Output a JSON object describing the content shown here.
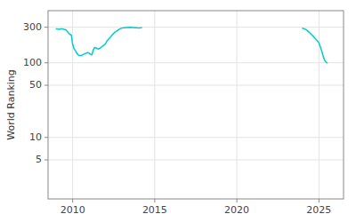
{
  "chart_data": {
    "type": "line",
    "ylabel": "World Ranking",
    "log": "y",
    "grid": true,
    "xlim": [
      2008.5,
      2026.5
    ],
    "ylim": [
      1.5,
      500
    ],
    "xticks": [
      2010,
      2015,
      2020,
      2025
    ],
    "yticks": [
      5,
      10,
      50,
      100,
      300
    ],
    "series": [
      {
        "color": "#00cccc",
        "x": [
          2009.0,
          2009.08,
          2009.17,
          2009.25,
          2009.33,
          2009.42,
          2009.5,
          2009.58,
          2009.67,
          2009.75,
          2009.83,
          2009.92,
          2010.0,
          2010.08,
          2010.17,
          2010.25,
          2010.33,
          2010.42,
          2010.5,
          2010.58,
          2010.67,
          2010.75,
          2010.83,
          2010.92,
          2011.0,
          2011.08,
          2011.17,
          2011.25,
          2011.33,
          2011.42,
          2011.5,
          2011.58,
          2011.67,
          2011.75,
          2011.83,
          2011.92,
          2012.0,
          2012.08,
          2012.17,
          2012.25,
          2012.33,
          2012.42,
          2012.5,
          2012.58,
          2012.67,
          2012.75,
          2012.83,
          2013.0,
          2013.08,
          2013.17,
          2013.25,
          2013.33,
          2013.5,
          2013.67,
          2013.83,
          2014.0,
          2014.1,
          2014.2
        ],
        "values": [
          285,
          283,
          281,
          284,
          286,
          283,
          280,
          277,
          265,
          250,
          240,
          235,
          175,
          155,
          145,
          135,
          128,
          125,
          125,
          127,
          130,
          133,
          135,
          137,
          135,
          130,
          128,
          148,
          160,
          158,
          155,
          153,
          158,
          162,
          168,
          173,
          180,
          195,
          205,
          215,
          225,
          238,
          248,
          258,
          265,
          272,
          282,
          292,
          294,
          296,
          297,
          298,
          299,
          298,
          296,
          293,
          294,
          296
        ]
      },
      {
        "color": "#00cccc",
        "x": [
          2024.0,
          2024.08,
          2024.17,
          2024.25,
          2024.33,
          2024.42,
          2024.5,
          2024.58,
          2024.67,
          2024.75,
          2024.83,
          2024.92,
          2025.0,
          2025.08,
          2025.17,
          2025.25,
          2025.33,
          2025.42,
          2025.5
        ],
        "values": [
          290,
          287,
          282,
          275,
          265,
          255,
          245,
          235,
          225,
          215,
          205,
          195,
          185,
          165,
          145,
          125,
          110,
          103,
          100
        ]
      }
    ]
  }
}
